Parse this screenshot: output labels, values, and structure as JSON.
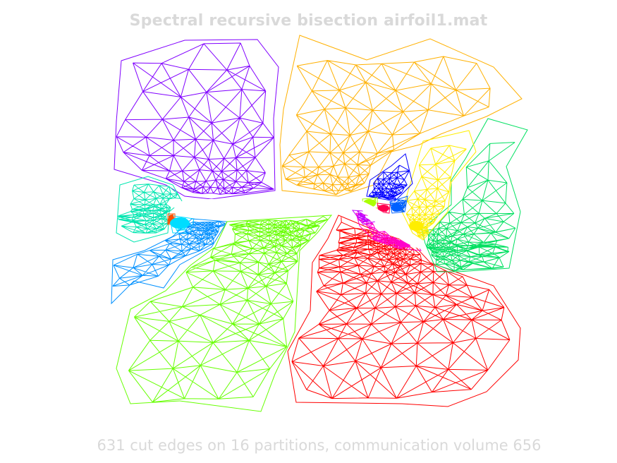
{
  "title": "Spectral recursive bisection airfoil1.mat",
  "caption": "631 cut edges on 16 partitions, communication volume 656",
  "partitions": [
    {
      "name": "purple",
      "color": "#8000ff"
    },
    {
      "name": "orange",
      "color": "#ffb000"
    },
    {
      "name": "blue",
      "color": "#0000ff"
    },
    {
      "name": "teal",
      "color": "#00e6b0"
    },
    {
      "name": "cyan",
      "color": "#00ddff"
    },
    {
      "name": "azure",
      "color": "#0090ff"
    },
    {
      "name": "light-green",
      "color": "#66ff00"
    },
    {
      "name": "yellow",
      "color": "#ffee00"
    },
    {
      "name": "green",
      "color": "#00e060"
    },
    {
      "name": "red",
      "color": "#ff0000"
    },
    {
      "name": "magenta",
      "color": "#ff00cc"
    },
    {
      "name": "violet",
      "color": "#c000ff"
    },
    {
      "name": "lime",
      "color": "#aaff00"
    },
    {
      "name": "crimson",
      "color": "#ff0050"
    },
    {
      "name": "bright-blue",
      "color": "#0060ff"
    },
    {
      "name": "orange-red",
      "color": "#ff5000"
    }
  ]
}
